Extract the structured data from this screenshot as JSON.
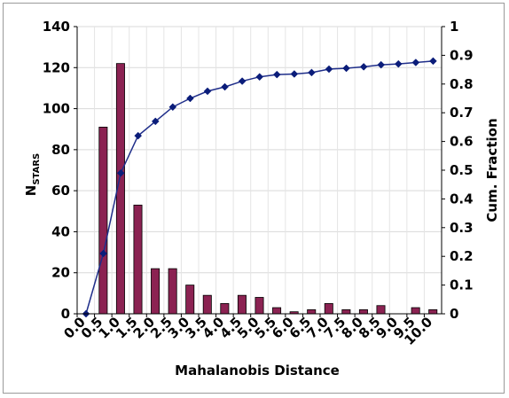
{
  "chart_data": {
    "type": "bar",
    "categories": [
      "0.0",
      "0.5",
      "1.0",
      "1.5",
      "2.0",
      "2.5",
      "3.0",
      "3.5",
      "4.0",
      "4.5",
      "5.0",
      "5.5",
      "6.0",
      "6.5",
      "7.0",
      "7.5",
      "8.0",
      "8.5",
      "9.0",
      "9.5",
      "10.0"
    ],
    "series": [
      {
        "type": "bar",
        "axis": "left",
        "color": "#8B2252",
        "values": [
          0,
          91,
          122,
          53,
          22,
          22,
          14,
          9,
          5,
          9,
          8,
          3,
          1,
          2,
          5,
          2,
          2,
          4,
          0,
          3,
          2
        ]
      },
      {
        "type": "line",
        "axis": "right",
        "color": "#1F2E8A",
        "marker": "diamond",
        "values": [
          0.0,
          0.21,
          0.49,
          0.62,
          0.67,
          0.72,
          0.75,
          0.775,
          0.79,
          0.81,
          0.825,
          0.833,
          0.835,
          0.84,
          0.852,
          0.855,
          0.86,
          0.867,
          0.87,
          0.875,
          0.88
        ]
      }
    ],
    "xlabel": "Mahalanobis Distance",
    "ylabel": "NSTARS",
    "ylabel_main": "N",
    "ylabel_sub": "STARS",
    "y2label": "Cum. Fraction",
    "ylim": [
      0,
      140
    ],
    "y2lim": [
      0,
      1
    ],
    "yticks": [
      "0",
      "20",
      "40",
      "60",
      "80",
      "100",
      "120",
      "140"
    ],
    "y2ticks": [
      "0",
      "0.1",
      "0.2",
      "0.3",
      "0.4",
      "0.5",
      "0.6",
      "0.7",
      "0.8",
      "0.9",
      "1"
    ],
    "grid": true,
    "legend": "none"
  }
}
